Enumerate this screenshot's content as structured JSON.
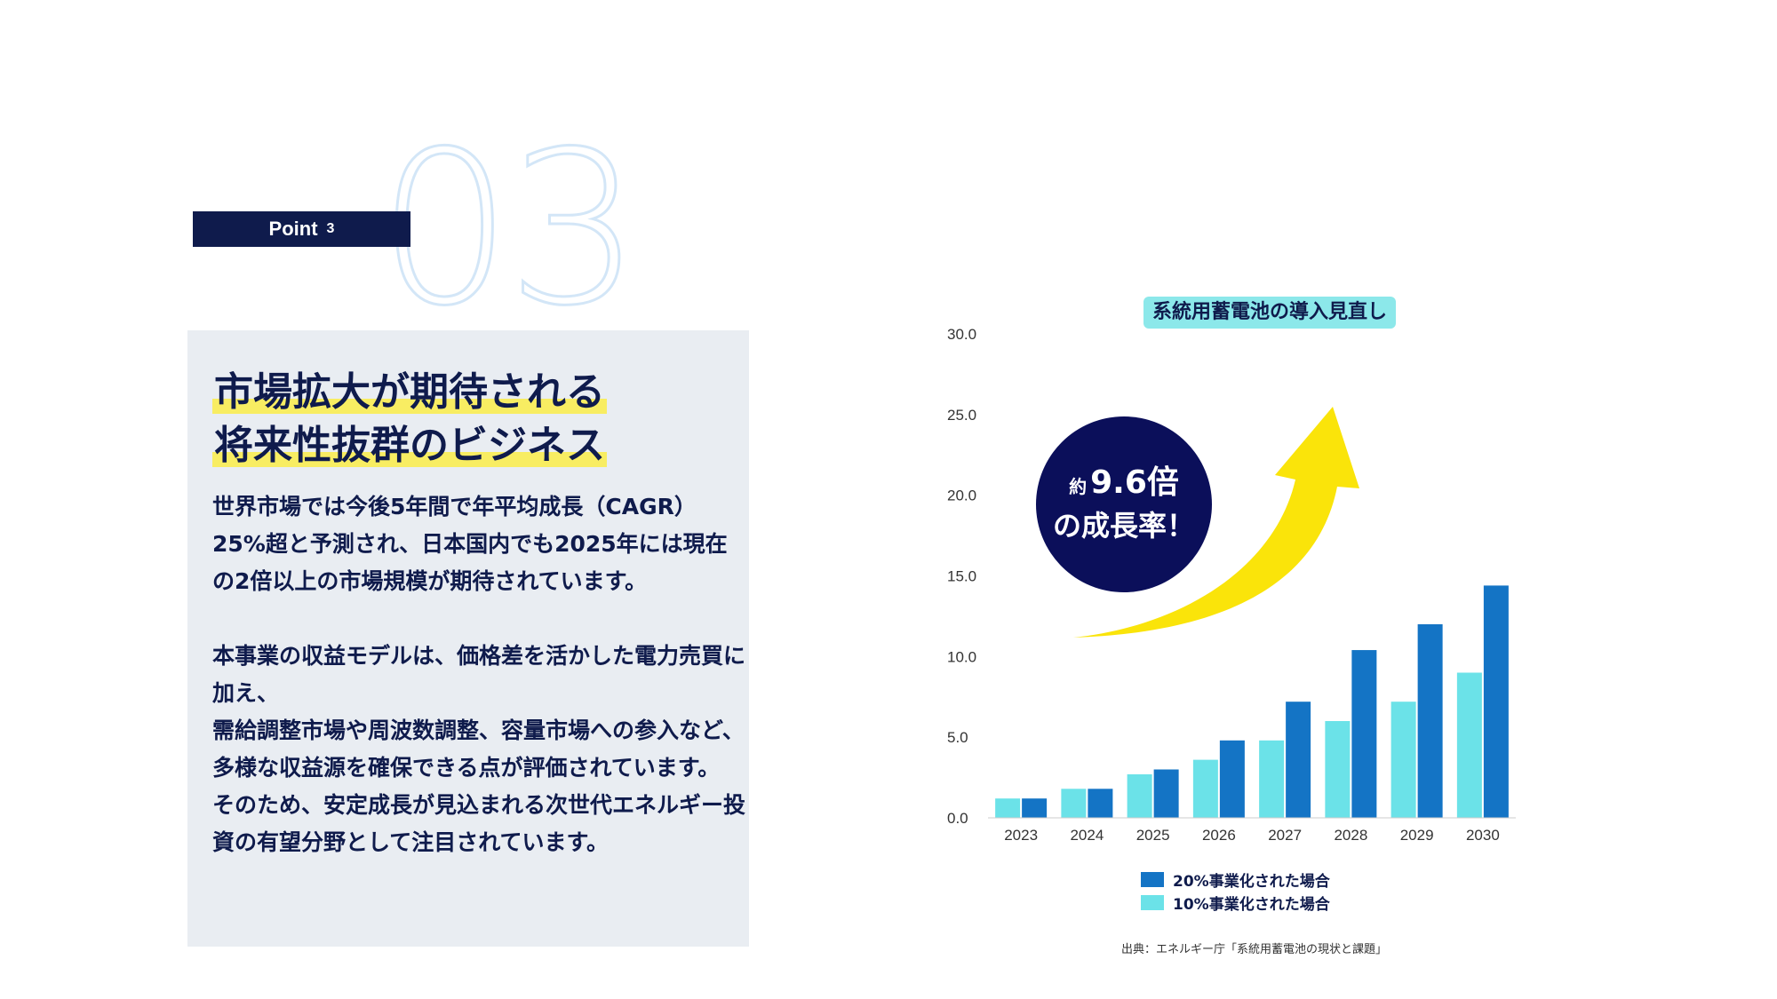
{
  "point": {
    "label": "Point",
    "number": "3",
    "big_number": "03"
  },
  "headline": {
    "line1": "市場拡大が期待される",
    "line2": "将来性抜群のビジネス"
  },
  "body": {
    "p1": "世界市場では今後5年間で年平均成長（CAGR）25%超と予測され、日本国内でも2025年には現在の2倍以上の市場規模が期待されています。",
    "p2": "本事業の収益モデルは、価格差を活かした電力売買に加え、",
    "p3": "需給調整市場や周波数調整、容量市場への参入など、多様な収益源を確保できる点が評価されています。",
    "p4": "そのため、安定成長が見込まれる次世代エネルギー投資の有望分野として注目されています。"
  },
  "badge": {
    "prefix": "約",
    "value": "9.6倍",
    "line2": "の成長率！"
  },
  "source": "出典：エネルギー庁「系統用蓄電池の現状と課題」",
  "colors": {
    "navy": "#0f1b4c",
    "series20": "#1474c5",
    "series10": "#6be2e8",
    "arrow": "#fae40a",
    "badge": "#0b0f5a"
  },
  "chart_data": {
    "type": "bar",
    "title": "系統用蓄電池の導入見直し",
    "categories": [
      "2023",
      "2024",
      "2025",
      "2026",
      "2027",
      "2028",
      "2029",
      "2030"
    ],
    "series": [
      {
        "name": "10%事業化された場合",
        "values": [
          1.2,
          1.8,
          2.7,
          3.6,
          4.8,
          6.0,
          7.2,
          9.0
        ]
      },
      {
        "name": "20%事業化された場合",
        "values": [
          1.2,
          1.8,
          3.0,
          4.8,
          7.2,
          10.4,
          12.0,
          14.4
        ]
      }
    ],
    "y_ticks": [
      "0.0",
      "5.0",
      "10.0",
      "15.0",
      "20.0",
      "25.0",
      "30.0"
    ],
    "ylim": [
      0,
      30
    ],
    "xlabel": "",
    "ylabel": "",
    "legend": [
      "20%事業化された場合",
      "10%事業化された場合"
    ],
    "legend_position": "bottom"
  }
}
